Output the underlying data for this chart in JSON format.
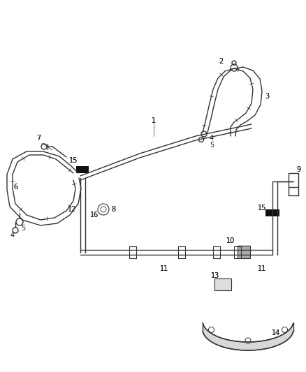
{
  "bg_color": "#ffffff",
  "line_color": "#333333",
  "label_color": "#222222",
  "fig_width": 4.38,
  "fig_height": 5.33,
  "dpi": 100
}
